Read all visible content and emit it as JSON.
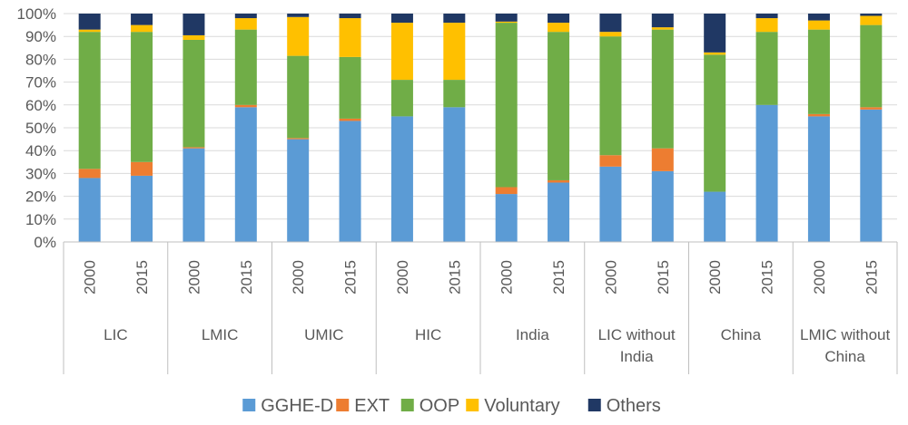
{
  "chart_data": {
    "type": "bar",
    "stacked": true,
    "y_tick_labels": [
      "0%",
      "10%",
      "20%",
      "30%",
      "40%",
      "50%",
      "60%",
      "70%",
      "80%",
      "90%",
      "100%"
    ],
    "ylim": [
      0,
      100
    ],
    "grid": true,
    "legend_position": "bottom",
    "groups": [
      {
        "label": "LIC",
        "years": [
          "2000",
          "2015"
        ]
      },
      {
        "label": "LMIC",
        "years": [
          "2000",
          "2015"
        ]
      },
      {
        "label": "UMIC",
        "years": [
          "2000",
          "2015"
        ]
      },
      {
        "label": "HIC",
        "years": [
          "2000",
          "2015"
        ]
      },
      {
        "label": "India",
        "years": [
          "2000",
          "2015"
        ]
      },
      {
        "label": "LIC without India",
        "years": [
          "2000",
          "2015"
        ]
      },
      {
        "label": "China",
        "years": [
          "2000",
          "2015"
        ]
      },
      {
        "label": "LMIC without China",
        "years": [
          "2000",
          "2015"
        ]
      }
    ],
    "series": [
      {
        "name": "GGHE-D",
        "color": "#5B9BD5",
        "values": [
          28,
          29,
          41,
          59,
          45,
          53,
          55,
          59,
          21,
          26,
          33,
          31,
          22,
          60,
          55,
          58
        ]
      },
      {
        "name": "EXT",
        "color": "#ED7D31",
        "values": [
          4,
          6,
          0.5,
          1,
          0.5,
          1,
          0,
          0,
          3,
          1,
          5,
          10,
          0,
          0,
          1,
          1
        ]
      },
      {
        "name": "OOP",
        "color": "#70AD47",
        "values": [
          60,
          57,
          47,
          33,
          36,
          27,
          16,
          12,
          72,
          65,
          52,
          52,
          60,
          32,
          37,
          36
        ]
      },
      {
        "name": "Voluntary",
        "color": "#FFC000",
        "values": [
          1,
          3,
          2,
          5,
          17,
          17,
          25,
          25,
          0.5,
          4,
          2,
          1,
          1,
          6,
          4,
          4
        ]
      },
      {
        "name": "Others",
        "color": "#203864",
        "values": [
          7,
          5,
          9.5,
          2,
          1.5,
          2,
          4,
          4,
          3.5,
          4,
          8,
          6,
          17,
          2,
          3,
          1
        ]
      }
    ]
  }
}
